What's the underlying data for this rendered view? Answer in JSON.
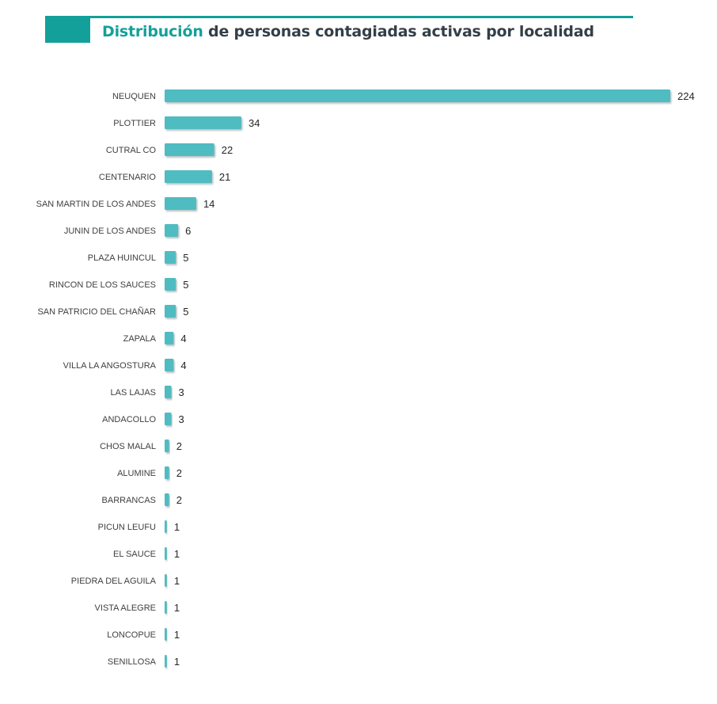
{
  "header": {
    "title_highlight": "Distribución",
    "title_rest": " de personas contagiadas activas por localidad"
  },
  "colors": {
    "accent": "#14a09a",
    "bar": "#4fbcc1",
    "bar_shadow": "#9aa5a8",
    "title_text": "#333f48"
  },
  "chart_data": {
    "type": "bar",
    "orientation": "horizontal",
    "title": "Distribución de personas contagiadas activas por localidad",
    "categories": [
      "NEUQUEN",
      "PLOTTIER",
      "CUTRAL CO",
      "CENTENARIO",
      "SAN MARTIN DE LOS ANDES",
      "JUNIN DE LOS ANDES",
      "PLAZA HUINCUL",
      "RINCON DE LOS SAUCES",
      "SAN PATRICIO DEL CHAÑAR",
      "ZAPALA",
      "VILLA LA ANGOSTURA",
      "LAS LAJAS",
      "ANDACOLLO",
      "CHOS MALAL",
      "ALUMINE",
      "BARRANCAS",
      "PICUN LEUFU",
      "EL SAUCE",
      "PIEDRA DEL AGUILA",
      "VISTA ALEGRE",
      "LONCOPUE",
      "SENILLOSA"
    ],
    "values": [
      224,
      34,
      22,
      21,
      14,
      6,
      5,
      5,
      5,
      4,
      4,
      3,
      3,
      2,
      2,
      2,
      1,
      1,
      1,
      1,
      1,
      1
    ],
    "xlabel": "",
    "ylabel": "",
    "xlim": [
      0,
      224
    ],
    "grid": false,
    "legend": "none",
    "data_labels": true
  }
}
